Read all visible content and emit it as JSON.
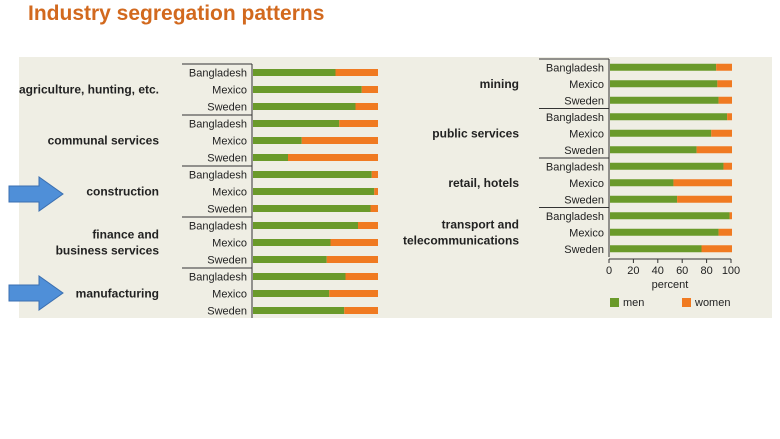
{
  "title": "Industry segregation patterns",
  "colors": {
    "men": "#6A9A2A",
    "women": "#F07A21",
    "title": "#D2691E",
    "panel": "#EFEEE4",
    "arrow": "#4F8FD8"
  },
  "chart_data": {
    "type": "bar",
    "stacked": true,
    "orientation": "horizontal",
    "country_order": [
      "Bangladesh",
      "Mexico",
      "Sweden"
    ],
    "xlabel": "percent",
    "xlim": [
      0,
      100
    ],
    "xticks": [
      0,
      20,
      40,
      60,
      80,
      100
    ],
    "legend": {
      "placement": "bottom",
      "entries": [
        "men",
        "women"
      ]
    },
    "panels": [
      {
        "sectors": [
          {
            "name": "agriculture, hunting, etc.",
            "highlighted": false,
            "men": [
              66,
              87,
              82
            ]
          },
          {
            "name": "communal services",
            "highlighted": false,
            "men": [
              69,
              39,
              28
            ]
          },
          {
            "name": "construction",
            "highlighted": true,
            "men": [
              95,
              97,
              94
            ]
          },
          {
            "name": "finance and business services",
            "highlighted": false,
            "men": [
              84,
              62,
              59
            ]
          },
          {
            "name": "manufacturing",
            "highlighted": true,
            "men": [
              74,
              61,
              73
            ]
          }
        ]
      },
      {
        "sectors": [
          {
            "name": "mining",
            "highlighted": false,
            "men": [
              87,
              88,
              89
            ]
          },
          {
            "name": "public services",
            "highlighted": false,
            "men": [
              96,
              83,
              71
            ]
          },
          {
            "name": "retail, hotels",
            "highlighted": false,
            "men": [
              93,
              52,
              55
            ]
          },
          {
            "name": "transport and telecommunications",
            "highlighted": false,
            "men": [
              98,
              89,
              75
            ]
          }
        ]
      }
    ]
  }
}
